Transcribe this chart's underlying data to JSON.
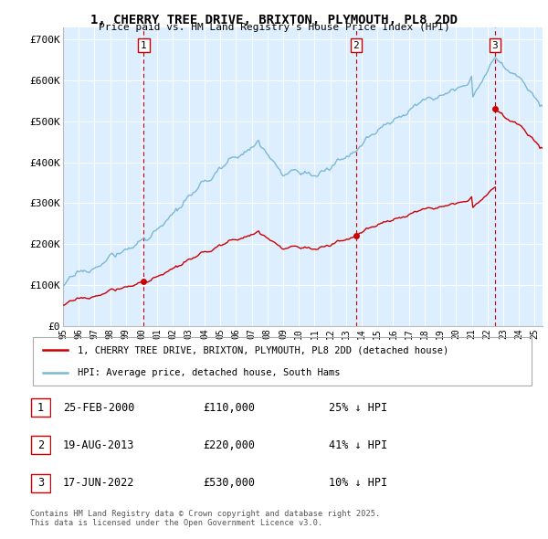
{
  "title": "1, CHERRY TREE DRIVE, BRIXTON, PLYMOUTH, PL8 2DD",
  "subtitle": "Price paid vs. HM Land Registry's House Price Index (HPI)",
  "ylabel_ticks": [
    "£0",
    "£100K",
    "£200K",
    "£300K",
    "£400K",
    "£500K",
    "£600K",
    "£700K"
  ],
  "ytick_values": [
    0,
    100000,
    200000,
    300000,
    400000,
    500000,
    600000,
    700000
  ],
  "ylim": [
    0,
    730000
  ],
  "xlim_start": 1995.0,
  "xlim_end": 2025.5,
  "hpi_color": "#7bb8d4",
  "price_color": "#cc0000",
  "vline_color": "#cc0000",
  "background_color": "#ddeeff",
  "sale_dates": [
    2000.14,
    2013.63,
    2022.46
  ],
  "sale_prices": [
    110000,
    220000,
    530000
  ],
  "sale_labels": [
    "1",
    "2",
    "3"
  ],
  "legend_property": "1, CHERRY TREE DRIVE, BRIXTON, PLYMOUTH, PL8 2DD (detached house)",
  "legend_hpi": "HPI: Average price, detached house, South Hams",
  "table_rows": [
    {
      "num": "1",
      "date": "25-FEB-2000",
      "price": "£110,000",
      "pct": "25% ↓ HPI"
    },
    {
      "num": "2",
      "date": "19-AUG-2013",
      "price": "£220,000",
      "pct": "41% ↓ HPI"
    },
    {
      "num": "3",
      "date": "17-JUN-2022",
      "price": "£530,000",
      "pct": "10% ↓ HPI"
    }
  ],
  "footnote": "Contains HM Land Registry data © Crown copyright and database right 2025.\nThis data is licensed under the Open Government Licence v3.0."
}
